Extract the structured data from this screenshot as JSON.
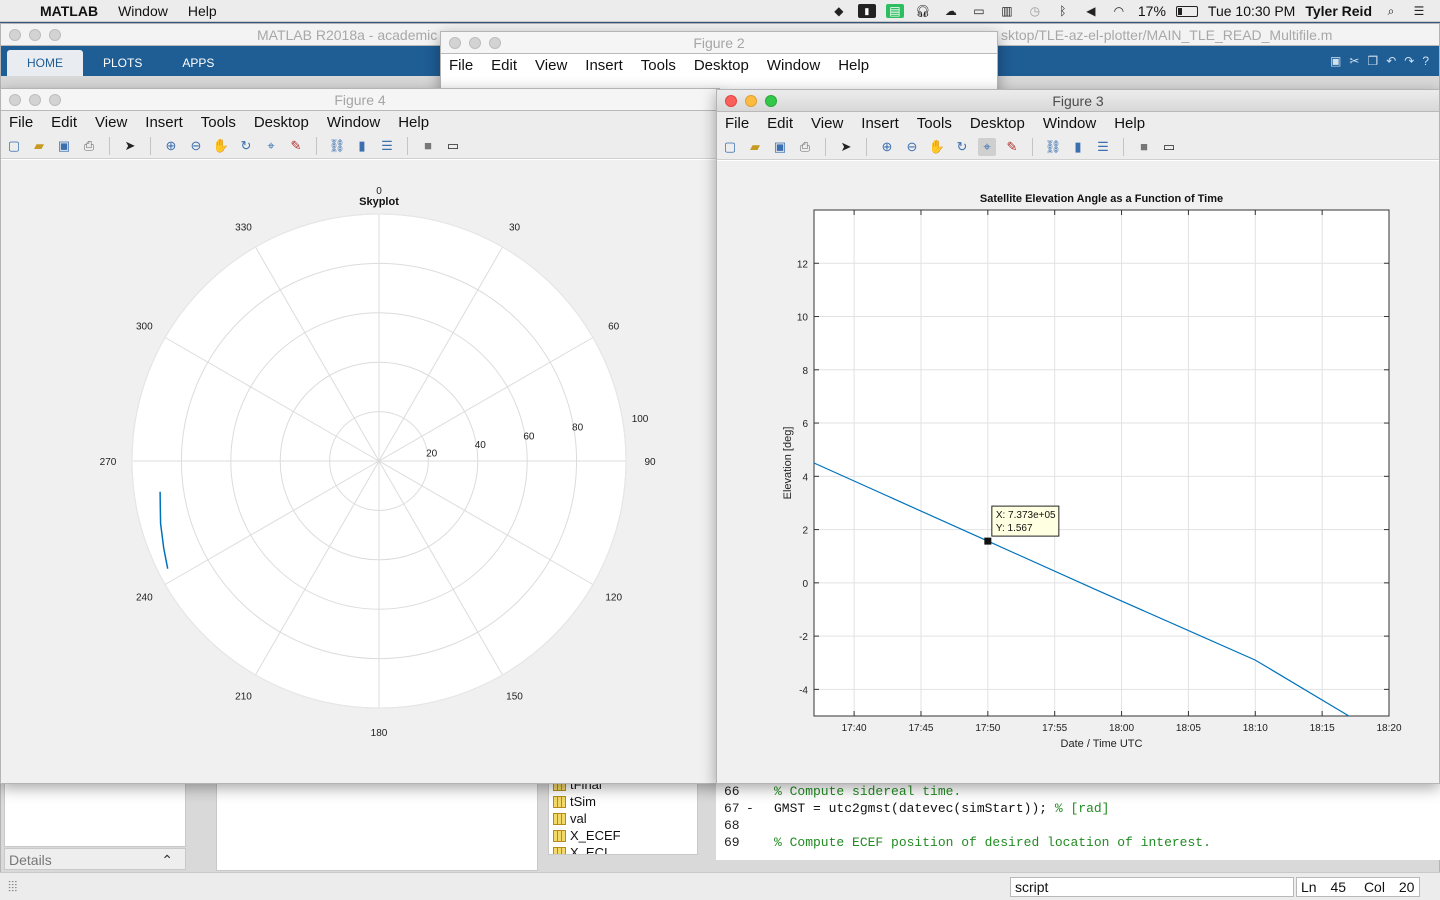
{
  "menubar": {
    "apple": "",
    "app_name": "MATLAB",
    "items": [
      "Window",
      "Help"
    ],
    "battery": "17%",
    "clock": "Tue 10:30 PM",
    "user": "Tyler Reid"
  },
  "matlab_window": {
    "title": "MATLAB R2018a - academic",
    "path": "sktop/TLE-az-el-plotter/MAIN_TLE_READ_Multifile.m",
    "tabs": [
      "HOME",
      "PLOTS",
      "APPS"
    ]
  },
  "figure2": {
    "title": "Figure 2",
    "menu": [
      "File",
      "Edit",
      "View",
      "Insert",
      "Tools",
      "Desktop",
      "Window",
      "Help"
    ]
  },
  "figure4": {
    "title": "Figure 4",
    "menu": [
      "File",
      "Edit",
      "View",
      "Insert",
      "Tools",
      "Desktop",
      "Window",
      "Help"
    ],
    "plot_title": "Skyplot"
  },
  "figure3": {
    "title": "Figure 3",
    "menu": [
      "File",
      "Edit",
      "View",
      "Insert",
      "Tools",
      "Desktop",
      "Window",
      "Help"
    ],
    "datatip": {
      "x": "X: 7.373e+05",
      "y": "Y: 1.567"
    }
  },
  "workspace": {
    "items": [
      "tFinal",
      "tSim",
      "val",
      "X_ECEF",
      "X_ECI"
    ]
  },
  "details_label": "Details",
  "editor": {
    "lines": [
      {
        "num": "66",
        "mark": "",
        "code": "% Compute sidereal time.",
        "comment": true
      },
      {
        "num": "67",
        "mark": "-",
        "code": "GMST = utc2gmst(datevec(simStart)); ",
        "tail": "% [rad]",
        "comment": false
      },
      {
        "num": "68",
        "mark": "",
        "code": "",
        "comment": false
      },
      {
        "num": "69",
        "mark": "",
        "code": "% Compute ECEF position of desired location of interest.",
        "comment": true
      }
    ]
  },
  "statusbar": {
    "mode": "script",
    "ln_label": "Ln",
    "ln": "45",
    "col_label": "Col",
    "col": "20"
  },
  "chart_data": [
    {
      "type": "polar",
      "title": "Skyplot",
      "angle_ticks": [
        "0",
        "30",
        "60",
        "90",
        "120",
        "150",
        "180",
        "210",
        "240",
        "270",
        "300",
        "330"
      ],
      "radial_ticks": [
        "20",
        "40",
        "60",
        "80",
        "100"
      ],
      "rlim": [
        0,
        100
      ],
      "series": [
        {
          "az_deg": [
            243,
            248,
            254,
            258,
            262
          ],
          "r": [
            96,
            94,
            92,
            90.5,
            89.5
          ]
        }
      ],
      "grid": true
    },
    {
      "type": "line",
      "title": "Satellite Elevation Angle as a Function of Time",
      "xlabel": "Date / Time UTC",
      "ylabel": "Elevation [deg]",
      "x_ticks": [
        "17:40",
        "17:45",
        "17:50",
        "17:55",
        "18:00",
        "18:05",
        "18:10",
        "18:15",
        "18:20"
      ],
      "y_ticks": [
        "-4",
        "-2",
        "0",
        "2",
        "4",
        "6",
        "8",
        "10",
        "12"
      ],
      "xlim_min": [
        1057,
        1100
      ],
      "ylim": [
        -5,
        14
      ],
      "series": [
        {
          "x_min": [
            1057,
            1070,
            1078,
            1090,
            1097
          ],
          "y": [
            4.5,
            1.567,
            -0.24,
            -2.9,
            -5.0
          ],
          "color": "#0072bd"
        }
      ],
      "datatip": {
        "x_min": 1070,
        "y": 1.567
      },
      "grid": true
    }
  ]
}
